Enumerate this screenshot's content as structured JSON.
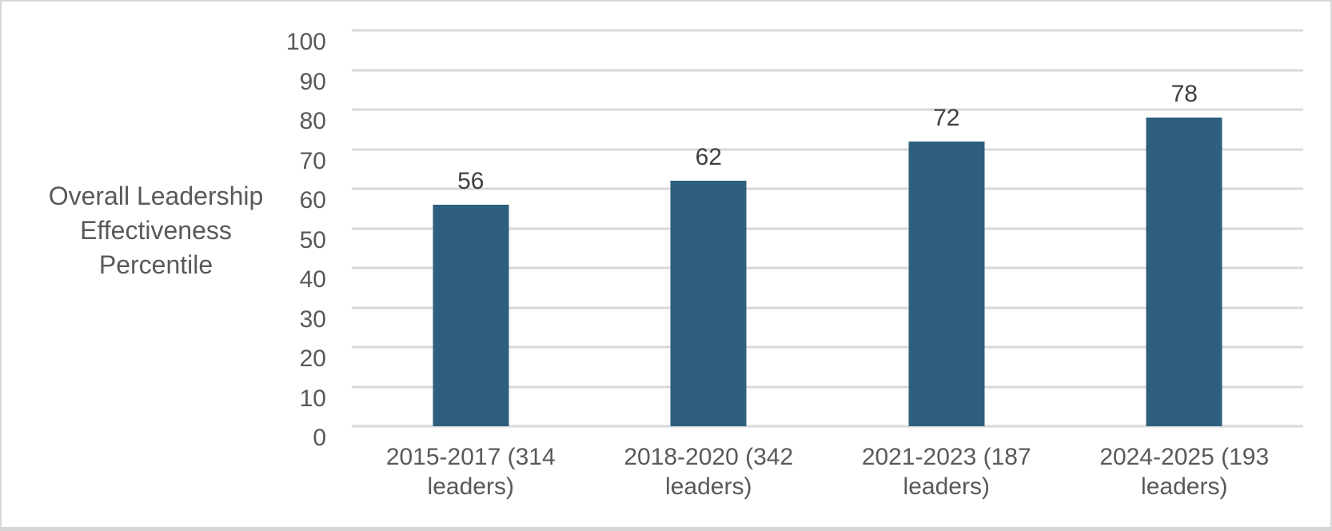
{
  "chart_data": {
    "type": "bar",
    "title": "",
    "xlabel": "",
    "ylabel": "Overall Leadership Effectiveness Percentile",
    "categories": [
      "2015-2017 (314 leaders)",
      "2018-2020 (342 leaders)",
      "2021-2023 (187 leaders)",
      "2024-2025 (193 leaders)"
    ],
    "values": [
      56,
      62,
      72,
      78
    ],
    "data_labels": [
      "56",
      "62",
      "72",
      "78"
    ],
    "ylim": [
      0,
      100
    ],
    "yticks": [
      0,
      10,
      20,
      30,
      40,
      50,
      60,
      70,
      80,
      90,
      100
    ],
    "grid": "horizontal",
    "legend": "none",
    "colors": {
      "bar": "#2e5f7e",
      "gridline": "#d9d9d9",
      "axis_text": "#595959",
      "data_label": "#404040",
      "frame_border": "#d6d6d6",
      "background": "#ffffff"
    }
  }
}
